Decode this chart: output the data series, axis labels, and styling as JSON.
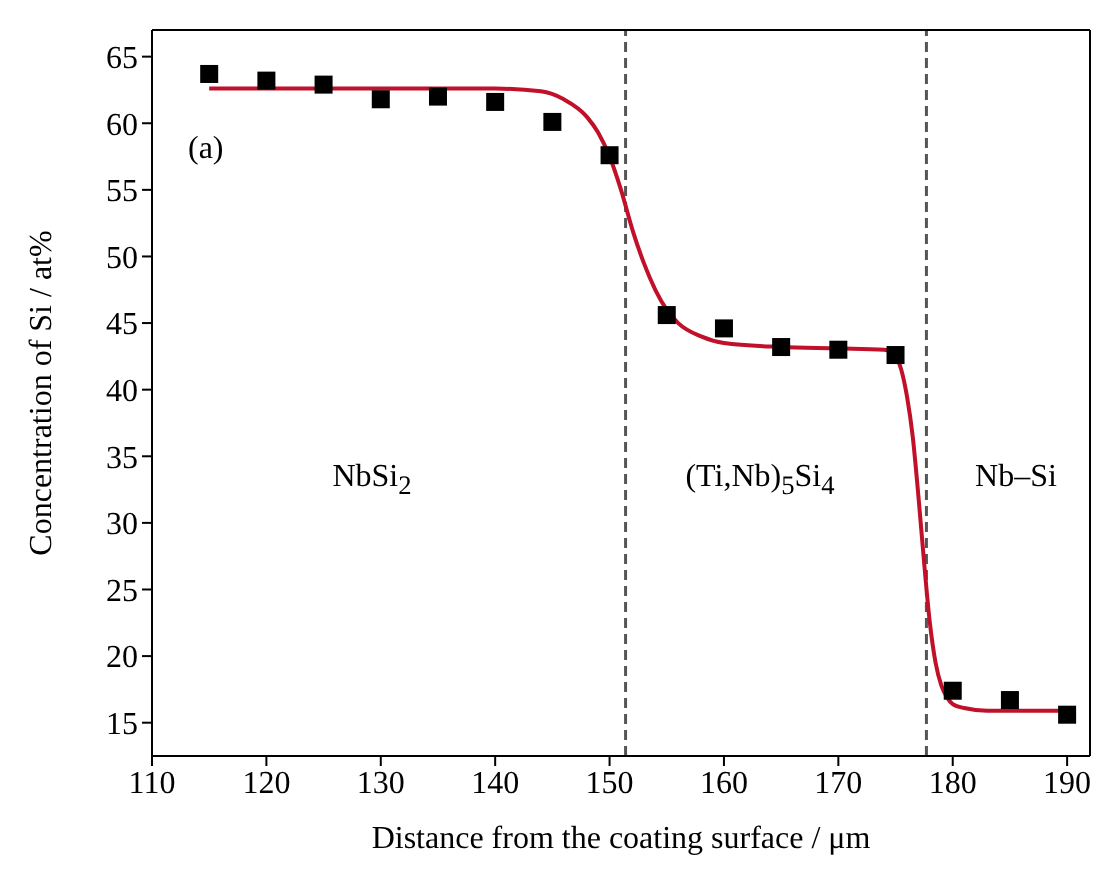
{
  "chart_data": {
    "type": "scatter",
    "xlabel": "Distance from the coating surface / μm",
    "ylabel": "Concentration of Si / at%",
    "xlim": [
      110,
      192
    ],
    "xticks": [
      110,
      120,
      130,
      140,
      150,
      160,
      170,
      180,
      190
    ],
    "ylim": [
      12.5,
      67
    ],
    "yticks": [
      15,
      20,
      25,
      30,
      35,
      40,
      45,
      50,
      55,
      60,
      65
    ],
    "grid": false,
    "legend": false,
    "series": [
      {
        "marker": "square",
        "color": "#000000",
        "x": [
          115,
          120,
          125,
          130,
          135,
          140,
          145,
          150,
          155,
          160,
          165,
          170,
          175,
          180,
          185,
          190
        ],
        "values": [
          63.7,
          63.2,
          62.9,
          61.8,
          62.0,
          61.6,
          60.1,
          57.6,
          45.6,
          44.6,
          43.2,
          43.0,
          42.6,
          17.4,
          16.7,
          15.6
        ]
      },
      {
        "type": "line",
        "marker": "none",
        "line_style": "solid",
        "color": "#c0102a",
        "x": [
          115,
          140,
          144,
          146,
          148,
          149,
          150,
          151,
          152,
          153,
          154,
          155,
          156,
          158,
          160,
          165,
          170,
          174,
          175,
          175.5,
          176,
          176.5,
          177,
          177.5,
          178,
          178.5,
          179,
          179.5,
          180,
          181,
          183,
          190
        ],
        "values": [
          62.6,
          62.6,
          62.4,
          61.8,
          60.5,
          59.3,
          57.5,
          55,
          52,
          49.5,
          47.5,
          46,
          45,
          44,
          43.5,
          43.2,
          43.1,
          43.0,
          42.5,
          41.5,
          39.5,
          36.5,
          32,
          27,
          22.5,
          19.5,
          17.8,
          16.9,
          16.4,
          16.1,
          15.9,
          15.9
        ]
      }
    ],
    "ref_lines": [
      {
        "axis": "x",
        "value": 151.4,
        "color": "#555555",
        "line_style": "dashed"
      },
      {
        "axis": "x",
        "value": 177.7,
        "color": "#555555",
        "line_style": "dashed"
      }
    ],
    "annotations": [
      "(a)",
      "NbSi$_{2}$",
      "(Ti,Nb)$_{5}$Si$_{4}$",
      "Nb–Si"
    ]
  }
}
